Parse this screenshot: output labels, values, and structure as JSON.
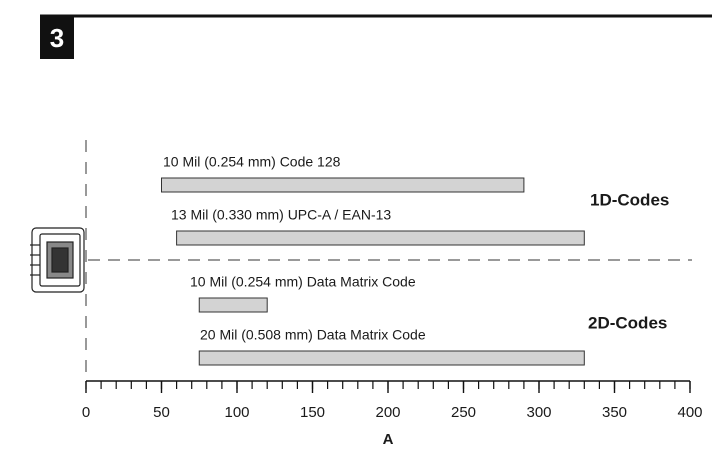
{
  "chart_data": {
    "type": "range",
    "figure_number": "3",
    "xlabel": "A",
    "categories": [
      "10 Mil (0.254 mm) Code 128",
      "13 Mil (0.330 mm) UPC-A / EAN-13",
      "10 Mil (0.254 mm) Data Matrix Code",
      "20 Mil (0.508 mm) Data Matrix Code"
    ],
    "starts": [
      50,
      60,
      75,
      75
    ],
    "ends": [
      290,
      330,
      120,
      330
    ],
    "groups": [
      "1D-Codes",
      "2D-Codes"
    ],
    "color": "#d3d3d3",
    "xlim": [
      0,
      400
    ],
    "xticks": [
      0,
      50,
      100,
      150,
      200,
      250,
      300,
      350,
      400
    ],
    "minor_xticks": [
      0,
      10,
      20,
      30,
      40,
      50,
      60,
      70,
      80,
      90,
      100,
      110,
      120,
      130,
      140,
      150,
      160,
      170,
      180,
      190,
      200,
      210,
      220,
      230,
      240,
      250,
      260,
      270,
      280,
      290,
      300,
      310,
      320,
      330,
      340,
      350,
      360,
      370,
      380,
      390,
      400
    ]
  }
}
